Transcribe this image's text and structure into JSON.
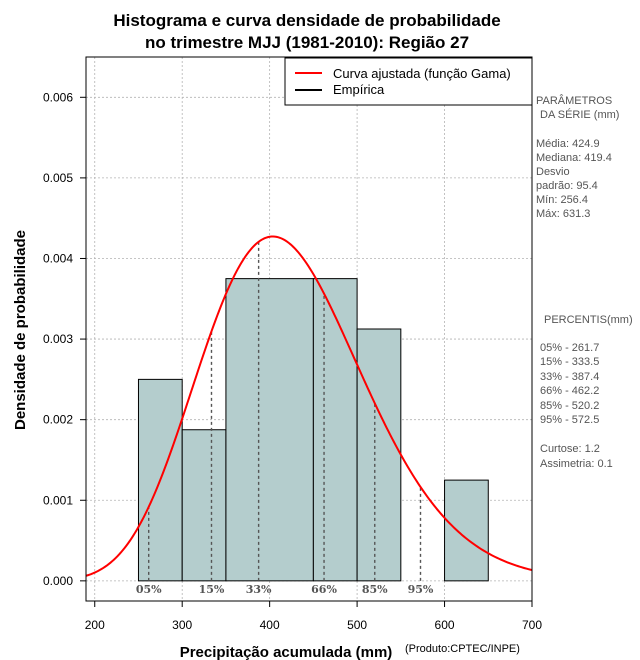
{
  "chart_data": {
    "type": "bar",
    "title_lines": [
      "Histograma e curva densidade de probabilidade",
      "no trimestre MJJ (1981-2010): Região 27"
    ],
    "xlabel": "Precipitação acumulada (mm)",
    "ylabel": "Densidade de probabilidade",
    "credit": "(Produto:CPTEC/INPE)",
    "xlim": [
      190,
      700
    ],
    "ylim": [
      -0.00025,
      0.0065
    ],
    "x_ticks": [
      200,
      300,
      400,
      500,
      600,
      700
    ],
    "x_tick_labels": [
      "200",
      "300",
      "400",
      "500",
      "600",
      "700"
    ],
    "y_ticks": [
      0.0,
      0.001,
      0.002,
      0.003,
      0.004,
      0.005,
      0.006
    ],
    "y_tick_labels": [
      "0.000",
      "0.001",
      "0.002",
      "0.003",
      "0.004",
      "0.005",
      "0.006"
    ],
    "grid": true,
    "histogram": [
      {
        "x0": 250,
        "x1": 300,
        "density": 0.0025
      },
      {
        "x0": 300,
        "x1": 350,
        "density": 0.001875
      },
      {
        "x0": 350,
        "x1": 450,
        "density": 0.00375
      },
      {
        "x0": 450,
        "x1": 500,
        "density": 0.00375
      },
      {
        "x0": 500,
        "x1": 550,
        "density": 0.003125
      },
      {
        "x0": 600,
        "x1": 650,
        "density": 0.00125
      }
    ],
    "gamma_fit": {
      "shape": 19.85,
      "scale": 21.41
    },
    "percentile_lines": [
      {
        "label": "05%",
        "value": 261.7
      },
      {
        "label": "15%",
        "value": 333.5
      },
      {
        "label": "33%",
        "value": 387.4
      },
      {
        "label": "66%",
        "value": 462.2
      },
      {
        "label": "85%",
        "value": 520.2
      },
      {
        "label": "95%",
        "value": 572.5
      }
    ],
    "legend": {
      "position": "top-right",
      "entries": [
        {
          "label": "Curva ajustada (função Gama)",
          "color": "#ff0000"
        },
        {
          "label": "Empírica",
          "color": "#000000"
        }
      ]
    },
    "colors": {
      "bar_fill": "#b4cdcd",
      "curve": "#ff0000",
      "grid": "#b3b3b3",
      "percentile": "#555555"
    }
  },
  "side_panel": {
    "params_title": [
      "PARÂMETROS",
      "DA SÉRIE (mm)"
    ],
    "params": [
      "Média:  424.9",
      "Mediana:  419.4",
      "Desvio",
      "padrão:  95.4",
      "Mín:  256.4",
      "Máx:  631.3"
    ],
    "percentis_title": "PERCENTIS(mm)",
    "percentis": [
      "05% -   261.7",
      "15% -   333.5",
      "33% -   387.4",
      "66% -   462.2",
      "85% -   520.2",
      "95% -   572.5"
    ],
    "stats": [
      "Curtose:  1.2",
      "Assimetria:  0.1"
    ]
  }
}
